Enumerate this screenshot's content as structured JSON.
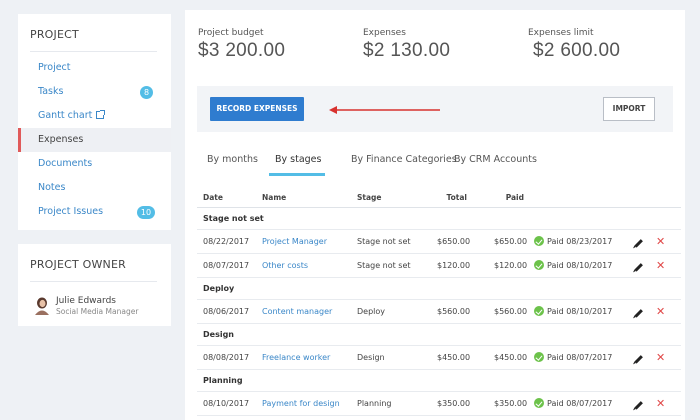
{
  "sidebar": {
    "project_title": "PROJECT",
    "items": [
      {
        "label": "Project"
      },
      {
        "label": "Tasks",
        "badge": "8"
      },
      {
        "label": "Gantt chart"
      },
      {
        "label": "Expenses"
      },
      {
        "label": "Documents"
      },
      {
        "label": "Notes"
      },
      {
        "label": "Project Issues",
        "badge": "10"
      }
    ],
    "owner_title": "PROJECT OWNER",
    "owner": {
      "name": "Julie Edwards",
      "role": "Social Media Manager"
    }
  },
  "stats": {
    "budget_label": "Project budget",
    "budget_value": "$3 200.00",
    "expenses_label": "Expenses",
    "expenses_value": "$2 130.00",
    "limit_label": "Expenses limit",
    "limit_value": "$2 600.00"
  },
  "actions": {
    "record_label": "RECORD EXPENSES",
    "import_label": "IMPORT"
  },
  "tabs": [
    {
      "label": "By months"
    },
    {
      "label": "By stages",
      "active": true
    },
    {
      "label": "By Finance Categories"
    },
    {
      "label": "By CRM Accounts"
    }
  ],
  "table": {
    "headers": {
      "date": "Date",
      "name": "Name",
      "stage": "Stage",
      "total": "Total",
      "paid": "Paid"
    },
    "groups": [
      {
        "title": "Stage not set",
        "rows": [
          {
            "date": "08/22/2017",
            "name": "Project Manager",
            "stage": "Stage not set",
            "total": "$650.00",
            "paid": "$650.00",
            "status": "Paid 08/23/2017"
          },
          {
            "date": "08/07/2017",
            "name": "Other costs",
            "stage": "Stage not set",
            "total": "$120.00",
            "paid": "$120.00",
            "status": "Paid 08/10/2017"
          }
        ]
      },
      {
        "title": "Deploy",
        "rows": [
          {
            "date": "08/06/2017",
            "name": "Content manager",
            "stage": "Deploy",
            "total": "$560.00",
            "paid": "$560.00",
            "status": "Paid 08/10/2017"
          }
        ]
      },
      {
        "title": "Design",
        "rows": [
          {
            "date": "08/08/2017",
            "name": "Freelance worker",
            "stage": "Design",
            "total": "$450.00",
            "paid": "$450.00",
            "status": "Paid 08/07/2017"
          }
        ]
      },
      {
        "title": "Planning",
        "rows": [
          {
            "date": "08/10/2017",
            "name": "Payment for design",
            "stage": "Planning",
            "total": "$350.00",
            "paid": "$350.00",
            "status": "Paid 08/07/2017"
          }
        ]
      }
    ],
    "delete_glyph": "✕"
  },
  "colors": {
    "accent": "#2f7ccf",
    "badge": "#53bde6",
    "active_marker": "#e05a5a",
    "paid_check": "#6cc24a",
    "delete": "#e04848"
  }
}
